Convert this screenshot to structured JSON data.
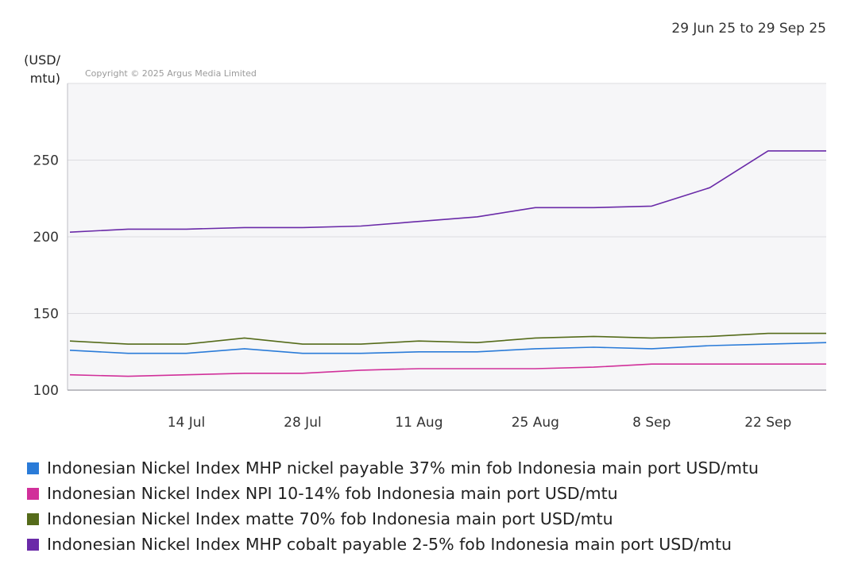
{
  "date_range": "29 Jun 25 to 29 Sep 25",
  "copyright": "Copyright © 2025 Argus Media Limited",
  "chart_data": {
    "type": "line",
    "ylabel": "(USD/\nmtu)",
    "ylim": [
      100,
      300
    ],
    "yticks": [
      100,
      150,
      200,
      250
    ],
    "xticks": [
      "14 Jul",
      "28 Jul",
      "11 Aug",
      "25 Aug",
      "8 Sep",
      "22 Sep"
    ],
    "grid": true,
    "legend_position": "bottom",
    "x": [
      "29 Jun",
      "7 Jul",
      "14 Jul",
      "21 Jul",
      "28 Jul",
      "4 Aug",
      "11 Aug",
      "18 Aug",
      "25 Aug",
      "1 Sep",
      "8 Sep",
      "15 Sep",
      "22 Sep",
      "29 Sep"
    ],
    "series": [
      {
        "name": "Indonesian Nickel Index MHP nickel payable 37% min fob Indonesia main port USD/mtu",
        "color": "#2a7bd8",
        "values": [
          126,
          124,
          124,
          127,
          124,
          124,
          125,
          125,
          127,
          128,
          127,
          129,
          130,
          131
        ]
      },
      {
        "name": "Indonesian Nickel Index NPI 10-14% fob Indonesia main port USD/mtu",
        "color": "#d1309a",
        "values": [
          110,
          109,
          110,
          111,
          111,
          113,
          114,
          114,
          114,
          115,
          117,
          117,
          117,
          117
        ]
      },
      {
        "name": "Indonesian Nickel Index matte 70% fob Indonesia main port USD/mtu",
        "color": "#556b1a",
        "values": [
          132,
          130,
          130,
          134,
          130,
          130,
          132,
          131,
          134,
          135,
          134,
          135,
          137,
          137
        ]
      },
      {
        "name": "Indonesian Nickel Index MHP cobalt payable 2-5% fob Indonesia main port USD/mtu",
        "color": "#6a2aa8",
        "values": [
          203,
          205,
          205,
          206,
          206,
          207,
          210,
          213,
          219,
          219,
          220,
          232,
          256,
          256
        ]
      }
    ]
  }
}
